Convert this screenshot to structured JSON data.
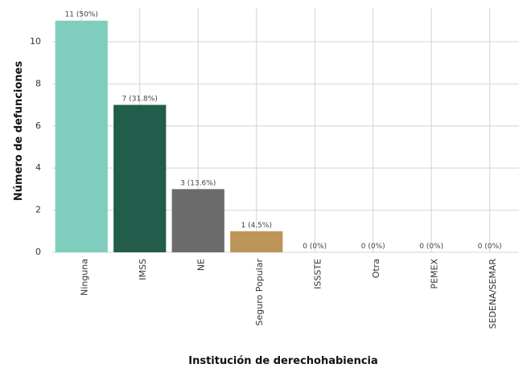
{
  "chart_data": {
    "type": "bar",
    "categories": [
      "Ninguna",
      "IMSS",
      "NE",
      "Seguro Popular",
      "ISSSTE",
      "Otra",
      "PEMEX",
      "SEDENA/SEMAR"
    ],
    "values": [
      11,
      7,
      3,
      1,
      0,
      0,
      0,
      0
    ],
    "value_labels": [
      "11 (50%)",
      "7 (31.8%)",
      "3 (13.6%)",
      "1 (4.5%)",
      "0 (0%)",
      "0 (0%)",
      "0 (0%)",
      "0 (0%)"
    ],
    "colors": [
      "#7fcdbd",
      "#225c4b",
      "#6b6b6b",
      "#bd9558",
      "#999999",
      "#999999",
      "#999999",
      "#999999"
    ],
    "xlabel": "Institución de derechohabiencia",
    "ylabel": "Número de defunciones",
    "ylim": [
      0,
      11.6
    ],
    "yticks": [
      0,
      2,
      4,
      6,
      8,
      10
    ],
    "grid": true
  }
}
